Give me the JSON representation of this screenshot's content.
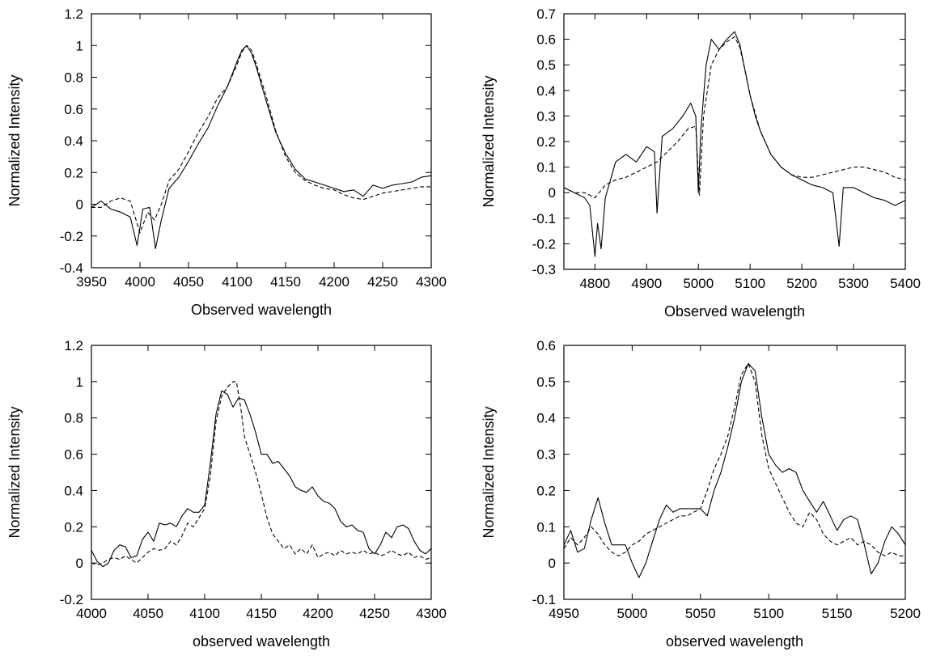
{
  "chart_data": [
    {
      "type": "line",
      "xlabel": "Observed wavelength",
      "ylabel": "Normalized Intensity",
      "xlim": [
        3950,
        4300
      ],
      "ylim": [
        -0.4,
        1.2
      ],
      "xticks": [
        3950,
        4000,
        4050,
        4100,
        4150,
        4200,
        4250,
        4300
      ],
      "yticks": [
        -0.4,
        -0.2,
        0,
        0.2,
        0.4,
        0.6,
        0.8,
        1,
        1.2
      ],
      "grid": false,
      "series": [
        {
          "style": "solid",
          "x": [
            3950,
            3960,
            3970,
            3980,
            3990,
            3997,
            4003,
            4010,
            4016,
            4022,
            4030,
            4040,
            4050,
            4060,
            4070,
            4080,
            4090,
            4100,
            4105,
            4110,
            4115,
            4120,
            4130,
            4140,
            4150,
            4160,
            4170,
            4180,
            4190,
            4200,
            4210,
            4220,
            4230,
            4240,
            4250,
            4260,
            4270,
            4280,
            4290,
            4300
          ],
          "y": [
            -0.02,
            0.02,
            -0.03,
            -0.05,
            -0.08,
            -0.26,
            -0.03,
            -0.02,
            -0.28,
            -0.1,
            0.1,
            0.17,
            0.27,
            0.38,
            0.48,
            0.62,
            0.74,
            0.9,
            0.97,
            1.0,
            0.95,
            0.86,
            0.65,
            0.45,
            0.32,
            0.22,
            0.16,
            0.14,
            0.12,
            0.1,
            0.08,
            0.09,
            0.05,
            0.12,
            0.1,
            0.12,
            0.13,
            0.14,
            0.17,
            0.18
          ]
        },
        {
          "style": "dashed",
          "x": [
            3950,
            3960,
            3970,
            3980,
            3990,
            4000,
            4008,
            4015,
            4022,
            4030,
            4040,
            4050,
            4060,
            4070,
            4080,
            4090,
            4100,
            4105,
            4110,
            4115,
            4120,
            4130,
            4140,
            4150,
            4160,
            4170,
            4180,
            4190,
            4200,
            4210,
            4220,
            4230,
            4240,
            4250,
            4260,
            4270,
            4280,
            4290,
            4300
          ],
          "y": [
            -0.02,
            -0.02,
            0.02,
            0.04,
            0.02,
            -0.18,
            -0.05,
            -0.1,
            0.0,
            0.15,
            0.22,
            0.33,
            0.45,
            0.55,
            0.67,
            0.74,
            0.88,
            0.96,
            1.0,
            0.97,
            0.88,
            0.68,
            0.46,
            0.3,
            0.2,
            0.15,
            0.12,
            0.1,
            0.09,
            0.06,
            0.04,
            0.03,
            0.05,
            0.07,
            0.08,
            0.09,
            0.1,
            0.11,
            0.11
          ]
        }
      ]
    },
    {
      "type": "line",
      "xlabel": "Observed wavelength",
      "ylabel": "Normalized Intensity",
      "xlim": [
        4740,
        5400
      ],
      "ylim": [
        -0.3,
        0.7
      ],
      "xticks": [
        4800,
        4900,
        5000,
        5100,
        5200,
        5300,
        5400
      ],
      "yticks": [
        -0.3,
        -0.2,
        -0.1,
        0,
        0.1,
        0.2,
        0.3,
        0.4,
        0.5,
        0.6,
        0.7
      ],
      "grid": false,
      "series": [
        {
          "style": "solid",
          "x": [
            4740,
            4760,
            4780,
            4790,
            4800,
            4805,
            4812,
            4820,
            4840,
            4860,
            4880,
            4900,
            4915,
            4920,
            4930,
            4950,
            4970,
            4985,
            4995,
            5000,
            5005,
            5015,
            5025,
            5040,
            5055,
            5070,
            5080,
            5090,
            5100,
            5110,
            5120,
            5140,
            5160,
            5180,
            5200,
            5220,
            5240,
            5260,
            5272,
            5280,
            5300,
            5320,
            5340,
            5360,
            5380,
            5400
          ],
          "y": [
            0.02,
            0.0,
            -0.02,
            -0.05,
            -0.25,
            -0.12,
            -0.22,
            -0.02,
            0.12,
            0.15,
            0.12,
            0.18,
            0.16,
            -0.08,
            0.22,
            0.25,
            0.3,
            0.35,
            0.3,
            0.0,
            0.25,
            0.5,
            0.6,
            0.56,
            0.6,
            0.63,
            0.58,
            0.48,
            0.38,
            0.3,
            0.24,
            0.15,
            0.1,
            0.07,
            0.05,
            0.03,
            0.02,
            0.0,
            -0.21,
            0.02,
            0.02,
            0.0,
            -0.02,
            -0.03,
            -0.05,
            -0.03
          ]
        },
        {
          "style": "dashed",
          "x": [
            4740,
            4760,
            4780,
            4800,
            4820,
            4840,
            4860,
            4880,
            4900,
            4920,
            4940,
            4960,
            4980,
            4995,
            5002,
            5010,
            5025,
            5040,
            5055,
            5070,
            5080,
            5090,
            5100,
            5120,
            5140,
            5160,
            5180,
            5200,
            5220,
            5240,
            5260,
            5280,
            5300,
            5320,
            5340,
            5360,
            5380,
            5400
          ],
          "y": [
            0.02,
            0.0,
            0.0,
            -0.02,
            0.03,
            0.05,
            0.06,
            0.08,
            0.1,
            0.12,
            0.16,
            0.2,
            0.25,
            0.26,
            -0.01,
            0.3,
            0.5,
            0.56,
            0.59,
            0.61,
            0.57,
            0.48,
            0.38,
            0.24,
            0.15,
            0.1,
            0.07,
            0.06,
            0.06,
            0.07,
            0.08,
            0.09,
            0.1,
            0.1,
            0.09,
            0.08,
            0.06,
            0.05
          ]
        }
      ]
    },
    {
      "type": "line",
      "xlabel": "observed wavelength",
      "ylabel": "Normalized Intensity",
      "xlim": [
        4000,
        4300
      ],
      "ylim": [
        -0.2,
        1.2
      ],
      "xticks": [
        4000,
        4050,
        4100,
        4150,
        4200,
        4250,
        4300
      ],
      "yticks": [
        -0.2,
        0,
        0.2,
        0.4,
        0.6,
        0.8,
        1,
        1.2
      ],
      "grid": false,
      "series": [
        {
          "style": "solid",
          "x": [
            4000,
            4005,
            4010,
            4015,
            4020,
            4025,
            4030,
            4035,
            4040,
            4045,
            4050,
            4055,
            4060,
            4065,
            4070,
            4075,
            4080,
            4085,
            4090,
            4095,
            4100,
            4105,
            4110,
            4115,
            4120,
            4125,
            4130,
            4135,
            4140,
            4145,
            4150,
            4155,
            4160,
            4165,
            4170,
            4175,
            4180,
            4185,
            4190,
            4195,
            4200,
            4205,
            4210,
            4215,
            4220,
            4225,
            4230,
            4235,
            4240,
            4245,
            4250,
            4255,
            4260,
            4265,
            4270,
            4275,
            4280,
            4285,
            4290,
            4295,
            4300
          ],
          "y": [
            0.07,
            0.01,
            -0.02,
            0.0,
            0.07,
            0.1,
            0.09,
            0.03,
            0.04,
            0.13,
            0.17,
            0.12,
            0.22,
            0.21,
            0.22,
            0.2,
            0.26,
            0.3,
            0.28,
            0.28,
            0.32,
            0.55,
            0.82,
            0.95,
            0.93,
            0.86,
            0.91,
            0.9,
            0.82,
            0.72,
            0.6,
            0.6,
            0.55,
            0.56,
            0.52,
            0.48,
            0.42,
            0.4,
            0.39,
            0.42,
            0.37,
            0.34,
            0.33,
            0.3,
            0.23,
            0.2,
            0.21,
            0.18,
            0.17,
            0.08,
            0.05,
            0.1,
            0.17,
            0.14,
            0.2,
            0.21,
            0.19,
            0.12,
            0.07,
            0.05,
            0.08
          ]
        },
        {
          "style": "dashed",
          "x": [
            4000,
            4005,
            4010,
            4015,
            4020,
            4025,
            4030,
            4035,
            4040,
            4045,
            4050,
            4055,
            4060,
            4065,
            4070,
            4075,
            4080,
            4085,
            4090,
            4095,
            4100,
            4105,
            4110,
            4115,
            4120,
            4125,
            4128,
            4132,
            4135,
            4140,
            4145,
            4150,
            4155,
            4160,
            4165,
            4170,
            4175,
            4180,
            4185,
            4190,
            4195,
            4200,
            4205,
            4210,
            4215,
            4220,
            4225,
            4230,
            4235,
            4240,
            4245,
            4250,
            4255,
            4260,
            4265,
            4270,
            4275,
            4280,
            4285,
            4290,
            4295,
            4300
          ],
          "y": [
            0.0,
            -0.01,
            0.0,
            0.02,
            0.03,
            0.02,
            0.04,
            0.02,
            0.0,
            0.03,
            0.06,
            0.08,
            0.07,
            0.08,
            0.12,
            0.1,
            0.15,
            0.22,
            0.2,
            0.25,
            0.3,
            0.48,
            0.78,
            0.92,
            0.97,
            1.0,
            1.0,
            0.85,
            0.7,
            0.6,
            0.5,
            0.38,
            0.25,
            0.16,
            0.12,
            0.08,
            0.1,
            0.05,
            0.08,
            0.05,
            0.1,
            0.03,
            0.05,
            0.06,
            0.04,
            0.07,
            0.05,
            0.06,
            0.05,
            0.07,
            0.05,
            0.06,
            0.04,
            0.05,
            0.07,
            0.05,
            0.04,
            0.06,
            0.03,
            0.04,
            0.02,
            0.03
          ]
        }
      ]
    },
    {
      "type": "line",
      "xlabel": "observed wavelength",
      "ylabel": "Normalized Intensity",
      "xlim": [
        4950,
        5200
      ],
      "ylim": [
        -0.1,
        0.6
      ],
      "xticks": [
        4950,
        5000,
        5050,
        5100,
        5150,
        5200
      ],
      "yticks": [
        -0.1,
        0,
        0.1,
        0.2,
        0.3,
        0.4,
        0.5,
        0.6
      ],
      "grid": false,
      "series": [
        {
          "style": "solid",
          "x": [
            4950,
            4955,
            4960,
            4965,
            4970,
            4975,
            4980,
            4985,
            4990,
            4995,
            5000,
            5005,
            5010,
            5015,
            5020,
            5025,
            5030,
            5035,
            5040,
            5045,
            5050,
            5055,
            5060,
            5065,
            5070,
            5075,
            5080,
            5085,
            5090,
            5095,
            5100,
            5105,
            5110,
            5115,
            5120,
            5125,
            5130,
            5135,
            5140,
            5145,
            5150,
            5155,
            5160,
            5165,
            5170,
            5175,
            5180,
            5185,
            5190,
            5195,
            5200
          ],
          "y": [
            0.05,
            0.09,
            0.03,
            0.04,
            0.12,
            0.18,
            0.11,
            0.05,
            0.05,
            0.05,
            0.0,
            -0.04,
            0.0,
            0.06,
            0.12,
            0.16,
            0.14,
            0.15,
            0.15,
            0.15,
            0.15,
            0.13,
            0.2,
            0.25,
            0.32,
            0.4,
            0.5,
            0.55,
            0.53,
            0.4,
            0.3,
            0.27,
            0.25,
            0.26,
            0.25,
            0.2,
            0.17,
            0.14,
            0.17,
            0.13,
            0.09,
            0.12,
            0.13,
            0.12,
            0.05,
            -0.03,
            0.0,
            0.06,
            0.1,
            0.08,
            0.05
          ]
        },
        {
          "style": "dashed",
          "x": [
            4950,
            4955,
            4960,
            4965,
            4970,
            4975,
            4980,
            4985,
            4990,
            4995,
            5000,
            5005,
            5010,
            5015,
            5020,
            5025,
            5030,
            5035,
            5040,
            5045,
            5050,
            5055,
            5060,
            5065,
            5070,
            5075,
            5080,
            5085,
            5090,
            5095,
            5100,
            5105,
            5110,
            5115,
            5120,
            5125,
            5130,
            5135,
            5140,
            5145,
            5150,
            5155,
            5160,
            5165,
            5170,
            5175,
            5180,
            5185,
            5190,
            5195,
            5200
          ],
          "y": [
            0.04,
            0.07,
            0.05,
            0.07,
            0.1,
            0.08,
            0.05,
            0.03,
            0.02,
            0.03,
            0.05,
            0.06,
            0.08,
            0.09,
            0.1,
            0.11,
            0.12,
            0.13,
            0.13,
            0.14,
            0.15,
            0.2,
            0.26,
            0.3,
            0.35,
            0.43,
            0.52,
            0.55,
            0.5,
            0.35,
            0.26,
            0.22,
            0.18,
            0.14,
            0.11,
            0.1,
            0.14,
            0.12,
            0.08,
            0.06,
            0.05,
            0.06,
            0.07,
            0.05,
            0.06,
            0.05,
            0.03,
            0.02,
            0.03,
            0.02,
            0.02
          ]
        }
      ]
    }
  ]
}
